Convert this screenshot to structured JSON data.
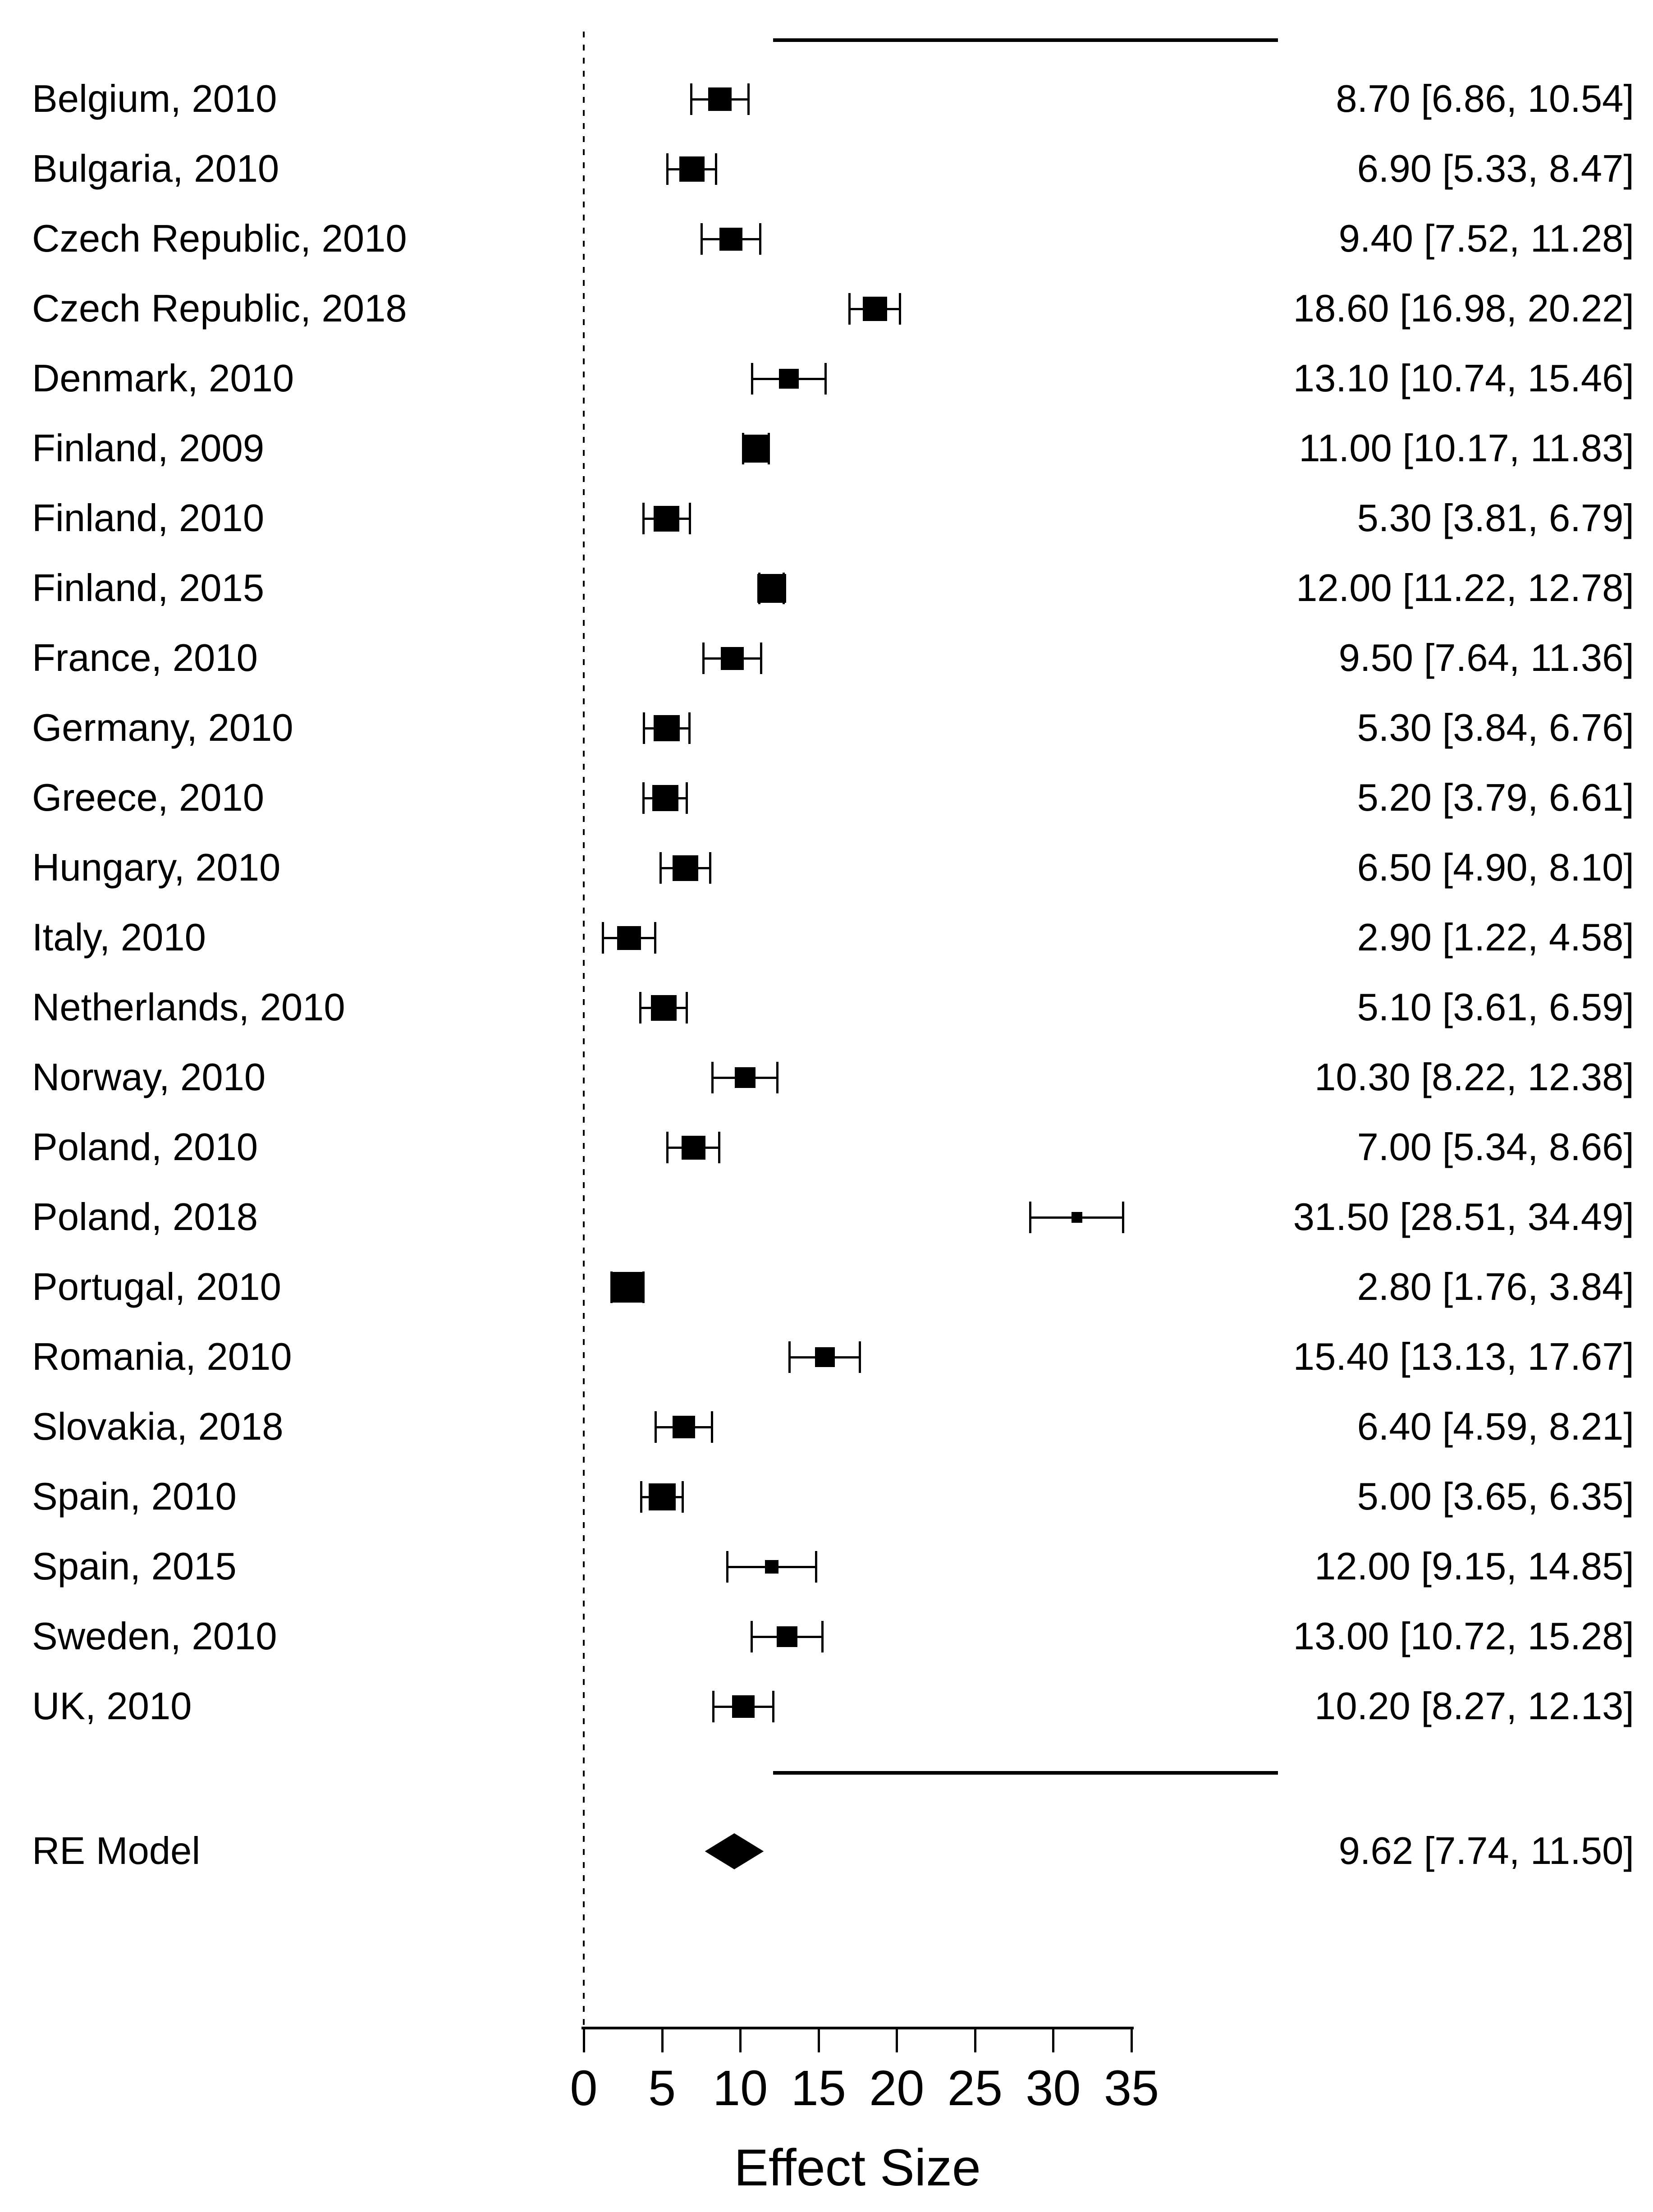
{
  "chart_data": {
    "type": "forest",
    "title": "",
    "xlabel": "Effect Size",
    "xlim": [
      0,
      35
    ],
    "x_ticks": [
      0,
      5,
      10,
      15,
      20,
      25,
      30,
      35
    ],
    "grid": false,
    "zero_reference_line": 0,
    "studies": [
      {
        "label": "Belgium, 2010",
        "estimate": 8.7,
        "ci_lower": 6.86,
        "ci_upper": 10.54,
        "marker_px": 52
      },
      {
        "label": "Bulgaria, 2010",
        "estimate": 6.9,
        "ci_lower": 5.33,
        "ci_upper": 8.47,
        "marker_px": 56
      },
      {
        "label": "Czech Republic, 2010",
        "estimate": 9.4,
        "ci_lower": 7.52,
        "ci_upper": 11.28,
        "marker_px": 51
      },
      {
        "label": "Czech Republic, 2018",
        "estimate": 18.6,
        "ci_lower": 16.98,
        "ci_upper": 20.22,
        "marker_px": 54
      },
      {
        "label": "Denmark, 2010",
        "estimate": 13.1,
        "ci_lower": 10.74,
        "ci_upper": 15.46,
        "marker_px": 44
      },
      {
        "label": "Finland, 2009",
        "estimate": 11.0,
        "ci_lower": 10.17,
        "ci_upper": 11.83,
        "marker_px": 62
      },
      {
        "label": "Finland, 2010",
        "estimate": 5.3,
        "ci_lower": 3.81,
        "ci_upper": 6.79,
        "marker_px": 57
      },
      {
        "label": "Finland, 2015",
        "estimate": 12.0,
        "ci_lower": 11.22,
        "ci_upper": 12.78,
        "marker_px": 64
      },
      {
        "label": "France, 2010",
        "estimate": 9.5,
        "ci_lower": 7.64,
        "ci_upper": 11.36,
        "marker_px": 51
      },
      {
        "label": "Germany, 2010",
        "estimate": 5.3,
        "ci_lower": 3.84,
        "ci_upper": 6.76,
        "marker_px": 58
      },
      {
        "label": "Greece, 2010",
        "estimate": 5.2,
        "ci_lower": 3.79,
        "ci_upper": 6.61,
        "marker_px": 58
      },
      {
        "label": "Hungary, 2010",
        "estimate": 6.5,
        "ci_lower": 4.9,
        "ci_upper": 8.1,
        "marker_px": 57
      },
      {
        "label": "Italy, 2010",
        "estimate": 2.9,
        "ci_lower": 1.22,
        "ci_upper": 4.58,
        "marker_px": 53
      },
      {
        "label": "Netherlands, 2010",
        "estimate": 5.1,
        "ci_lower": 3.61,
        "ci_upper": 6.59,
        "marker_px": 57
      },
      {
        "label": "Norway, 2010",
        "estimate": 10.3,
        "ci_lower": 8.22,
        "ci_upper": 12.38,
        "marker_px": 46
      },
      {
        "label": "Poland, 2010",
        "estimate": 7.0,
        "ci_lower": 5.34,
        "ci_upper": 8.66,
        "marker_px": 53
      },
      {
        "label": "Poland, 2018",
        "estimate": 31.5,
        "ci_lower": 28.51,
        "ci_upper": 34.49,
        "marker_px": 24
      },
      {
        "label": "Portugal, 2010",
        "estimate": 2.8,
        "ci_lower": 1.76,
        "ci_upper": 3.84,
        "marker_px": 68
      },
      {
        "label": "Romania, 2010",
        "estimate": 15.4,
        "ci_lower": 13.13,
        "ci_upper": 17.67,
        "marker_px": 44
      },
      {
        "label": "Slovakia, 2018",
        "estimate": 6.4,
        "ci_lower": 4.59,
        "ci_upper": 8.21,
        "marker_px": 50
      },
      {
        "label": "Spain, 2010",
        "estimate": 5.0,
        "ci_lower": 3.65,
        "ci_upper": 6.35,
        "marker_px": 60
      },
      {
        "label": "Spain, 2015",
        "estimate": 12.0,
        "ci_lower": 9.15,
        "ci_upper": 14.85,
        "marker_px": 30
      },
      {
        "label": "Sweden, 2010",
        "estimate": 13.0,
        "ci_lower": 10.72,
        "ci_upper": 15.28,
        "marker_px": 46
      },
      {
        "label": "UK, 2010",
        "estimate": 10.2,
        "ci_lower": 8.27,
        "ci_upper": 12.13,
        "marker_px": 50
      }
    ],
    "summary": {
      "label": "RE Model",
      "estimate": 9.62,
      "ci_lower": 7.74,
      "ci_upper": 11.5
    },
    "legend_position": "none",
    "annotation_format": "est [lo, hi]"
  }
}
